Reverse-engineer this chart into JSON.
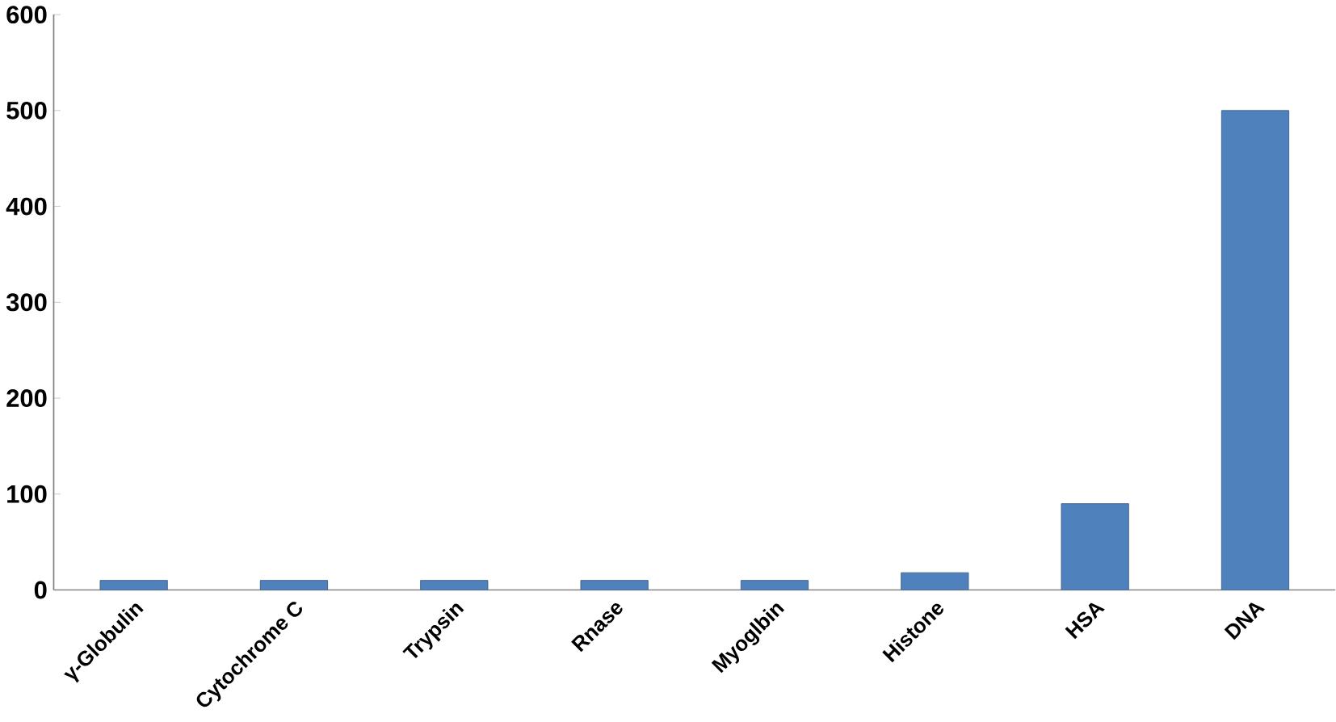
{
  "chart_data": {
    "type": "bar",
    "categories": [
      "γ-Globulin",
      "Cytochrome C",
      "Trypsin",
      "Rnase",
      "Myoglbin",
      "Histone",
      "HSA",
      "DNA"
    ],
    "values": [
      10,
      10,
      10,
      10,
      10,
      18,
      90,
      500
    ],
    "color": "#4f81bd",
    "ylim": [
      0,
      600
    ],
    "yticks": [
      0,
      100,
      200,
      300,
      400,
      500,
      600
    ],
    "grid": false
  }
}
